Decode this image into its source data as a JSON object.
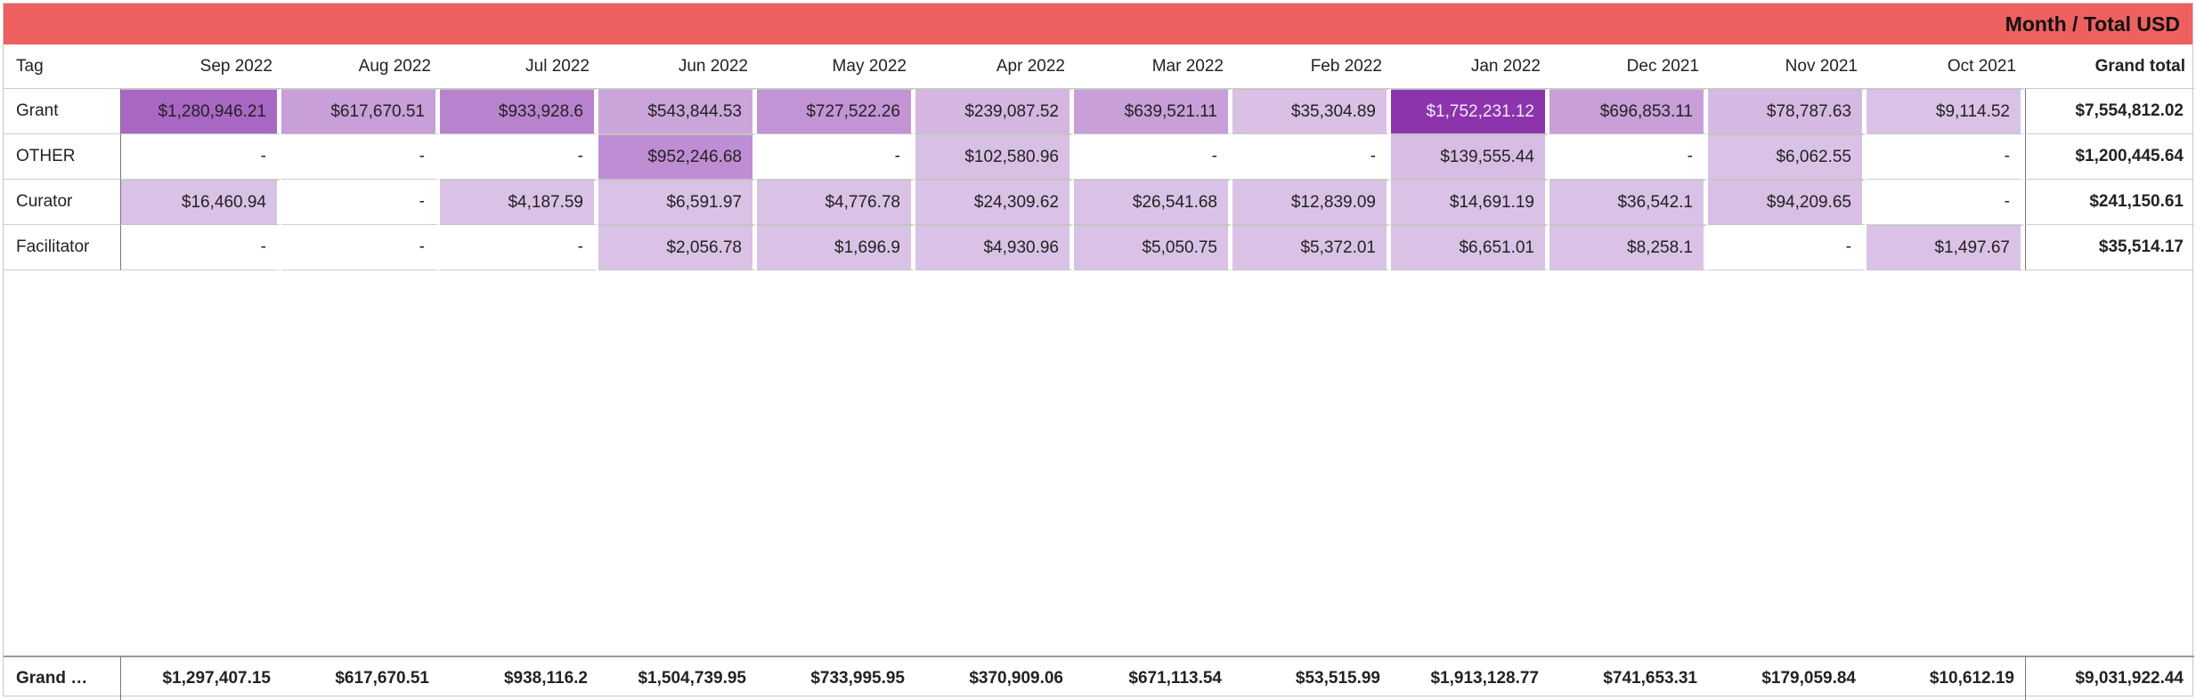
{
  "header": {
    "title": "Month / Total USD",
    "color": "#ee6060"
  },
  "table": {
    "row_header": "Tag",
    "columns": [
      "Sep 2022",
      "Aug 2022",
      "Jul 2022",
      "Jun 2022",
      "May 2022",
      "Apr 2022",
      "Mar 2022",
      "Feb 2022",
      "Jan 2022",
      "Dec 2021",
      "Nov 2021",
      "Oct 2021"
    ],
    "grand_total_label": "Grand total",
    "rows": [
      {
        "tag": "Grant",
        "cells": [
          "$1,280,946.21",
          "$617,670.51",
          "$933,928.6",
          "$543,844.53",
          "$727,522.26",
          "$239,087.52",
          "$639,521.11",
          "$35,304.89",
          "$1,752,231.12",
          "$696,853.11",
          "$78,787.63",
          "$9,114.52"
        ],
        "fill": [
          "#a967c4",
          "#c89fd8",
          "#b982cf",
          "#cba5da",
          "#c394d5",
          "#d4b6e1",
          "#c89fd8",
          "#d9c0e4",
          "#8b34ac",
          "#c89fd8",
          "#d5b9e2",
          "#dac2e6"
        ],
        "grand_total": "$7,554,812.02"
      },
      {
        "tag": "OTHER",
        "cells": [
          "-",
          "-",
          "-",
          "$952,246.68",
          "-",
          "$102,580.96",
          "-",
          "-",
          "$139,555.44",
          "-",
          "$6,062.55",
          "-"
        ],
        "fill": [
          "",
          "",
          "",
          "#bf8dd3",
          "",
          "#d8bfe4",
          "",
          "",
          "#d7bde3",
          "",
          "#dac2e6",
          ""
        ],
        "grand_total": "$1,200,445.64"
      },
      {
        "tag": "Curator",
        "cells": [
          "$16,460.94",
          "-",
          "$4,187.59",
          "$6,591.97",
          "$4,776.78",
          "$24,309.62",
          "$26,541.68",
          "$12,839.09",
          "$14,691.19",
          "$36,542.1",
          "$94,209.65",
          "-"
        ],
        "fill": [
          "#dac2e6",
          "",
          "#dac2e6",
          "#dac2e6",
          "#dac2e6",
          "#dac2e6",
          "#dac2e6",
          "#dac2e6",
          "#dac2e6",
          "#dac2e6",
          "#d8bfe4",
          ""
        ],
        "grand_total": "$241,150.61"
      },
      {
        "tag": "Facilitator",
        "cells": [
          "-",
          "-",
          "-",
          "$2,056.78",
          "$1,696.9",
          "$4,930.96",
          "$5,050.75",
          "$5,372.01",
          "$6,651.01",
          "$8,258.1",
          "-",
          "$1,497.67"
        ],
        "fill": [
          "",
          "",
          "",
          "#dac2e6",
          "#dac2e6",
          "#dac2e6",
          "#dac2e6",
          "#dac2e6",
          "#dac2e6",
          "#dac2e6",
          "",
          "#dac2e6"
        ],
        "grand_total": "$35,514.17"
      }
    ],
    "footer": {
      "label": "Grand …",
      "cells": [
        "$1,297,407.15",
        "$617,670.51",
        "$938,116.2",
        "$1,504,739.95",
        "$733,995.95",
        "$370,909.06",
        "$671,113.54",
        "$53,515.99",
        "$1,913,128.77",
        "$741,653.31",
        "$179,059.84",
        "$10,612.19"
      ],
      "grand_total": "$9,031,922.44"
    }
  }
}
